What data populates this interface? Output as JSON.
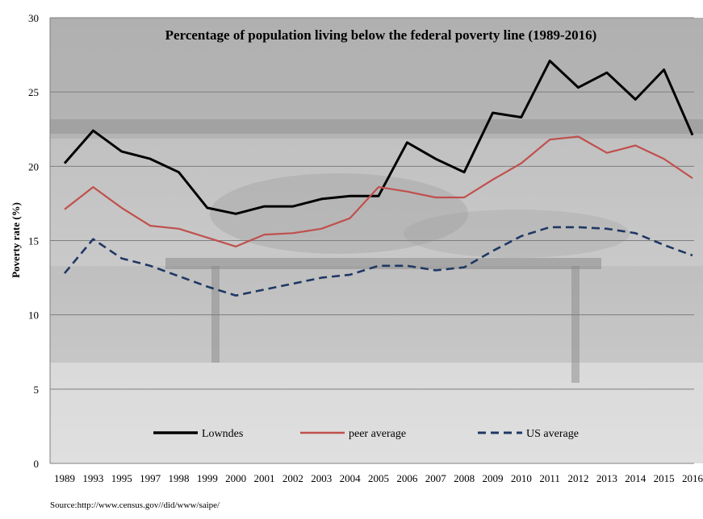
{
  "chart_data": {
    "type": "line",
    "title": "Percentage of population living below the federal poverty line (1989-2016)",
    "ylabel": "Poverty rate (%)",
    "xlabel": "",
    "ylim": [
      0,
      30
    ],
    "yticks": [
      0,
      5,
      10,
      15,
      20,
      25,
      30
    ],
    "grid": "horizontal",
    "legend_position": "bottom",
    "categories": [
      "1989",
      "1993",
      "1995",
      "1997",
      "1998",
      "1999",
      "2000",
      "2001",
      "2002",
      "2003",
      "2004",
      "2005",
      "2006",
      "2007",
      "2008",
      "2009",
      "2010",
      "2011",
      "2012",
      "2013",
      "2014",
      "2015",
      "2016"
    ],
    "series": [
      {
        "name": "Lowndes",
        "color": "#000000",
        "style": "solid",
        "values": [
          20.2,
          22.4,
          21.0,
          20.5,
          19.6,
          17.2,
          16.8,
          17.3,
          17.3,
          17.8,
          18.0,
          18.0,
          21.6,
          20.5,
          19.6,
          23.6,
          23.3,
          27.1,
          25.3,
          26.3,
          24.5,
          26.5,
          22.1
        ]
      },
      {
        "name": "peer average",
        "color": "#c0504d",
        "style": "solid",
        "values": [
          17.1,
          18.6,
          17.2,
          16.0,
          15.8,
          15.2,
          14.6,
          15.4,
          15.5,
          15.8,
          16.5,
          18.6,
          18.3,
          17.9,
          17.9,
          19.1,
          20.2,
          21.8,
          22.0,
          20.9,
          21.4,
          20.5,
          19.2
        ]
      },
      {
        "name": "US average",
        "color": "#1f3864",
        "style": "dashed",
        "values": [
          12.8,
          15.1,
          13.8,
          13.3,
          12.6,
          11.9,
          11.3,
          11.7,
          12.1,
          12.5,
          12.7,
          13.3,
          13.3,
          13.0,
          13.2,
          14.3,
          15.3,
          15.9,
          15.9,
          15.8,
          15.5,
          14.7,
          14.0
        ]
      }
    ]
  },
  "source": "Source:http://www.census.gov//did/www/saipe/"
}
